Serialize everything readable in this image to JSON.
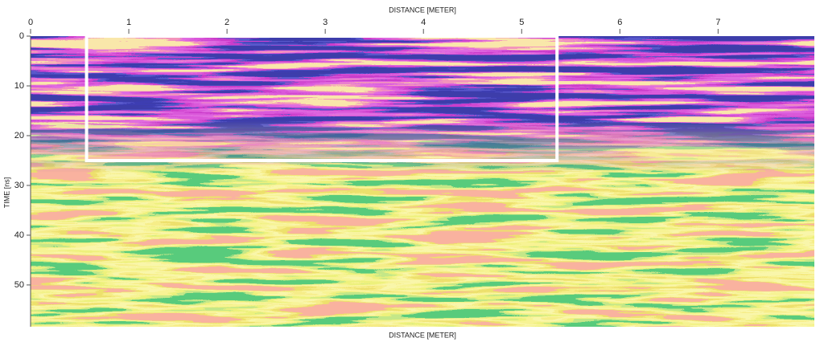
{
  "chart_data": {
    "type": "radargram",
    "xlabel": "DISTANCE [METER]",
    "ylabel": "TIME [ns]",
    "xlim": [
      0,
      7.98
    ],
    "xticks": [
      0,
      1,
      2,
      3,
      4,
      5,
      6,
      7
    ],
    "ylim": [
      0,
      58.4
    ],
    "yticks": [
      0,
      10,
      20,
      30,
      40,
      50
    ],
    "y_inverted": true,
    "highlight": {
      "color": "#ffffff",
      "xlim": [
        0.57,
        5.36
      ],
      "ylim": [
        0,
        25
      ]
    }
  }
}
